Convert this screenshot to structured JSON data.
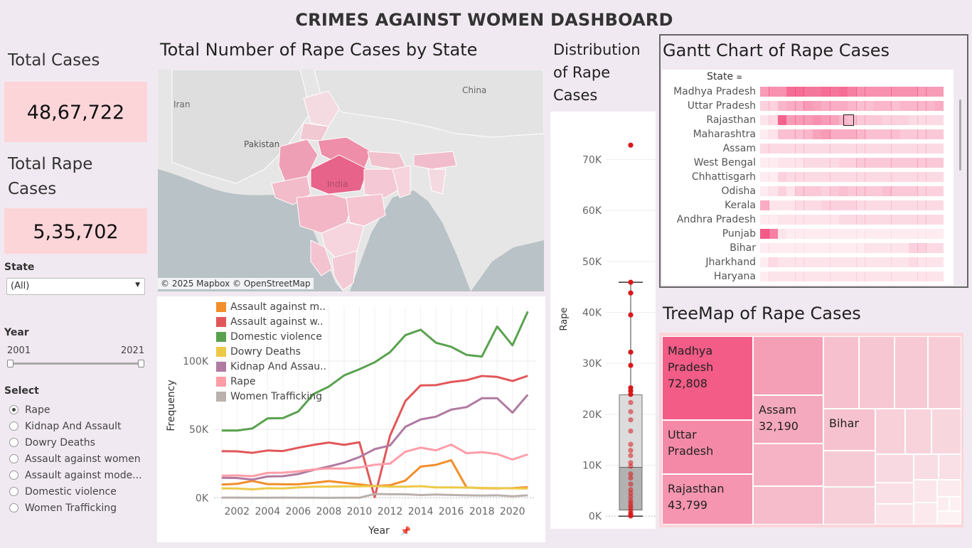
{
  "title": "CRIMES AGAINST WOMEN DASHBOARD",
  "kpis": {
    "total_cases_label": "Total Cases",
    "total_cases_value": "48,67,722",
    "total_rape_label": "Total Rape Cases",
    "total_rape_value": "5,35,702"
  },
  "filters": {
    "state_label": "State",
    "state_value": "(All)",
    "year_label": "Year",
    "year_min": "2001",
    "year_max": "2021",
    "select_label": "Select",
    "options": [
      "Rape",
      "Kidnap And Assault",
      "Dowry Deaths",
      "Assault against women",
      "Assault against mode...",
      "Domestic violence",
      "Women Trafficking"
    ],
    "selected_index": 0
  },
  "map": {
    "title": "Total Number of Rape Cases by State",
    "labels": {
      "iran": "Iran",
      "pakistan": "Pakistan",
      "china": "China",
      "india": "India"
    },
    "attribution": "© 2025 Mapbox © OpenStreetMap"
  },
  "colors": {
    "accent_pink": "#f25c86",
    "light_pink": "#fcd5d9",
    "bg": "#f1e9f1",
    "dot_red": "#d7191c"
  },
  "chart_data": [
    {
      "type": "line",
      "xlabel": "Year",
      "ylabel": "Frequency",
      "ylim": [
        -5000,
        140000
      ],
      "yticks": [
        "0K",
        "50K",
        "100K"
      ],
      "xticks": [
        "2002",
        "2004",
        "2006",
        "2008",
        "2010",
        "2012",
        "2014",
        "2016",
        "2018",
        "2020"
      ],
      "x": [
        2001,
        2002,
        2003,
        2004,
        2005,
        2006,
        2007,
        2008,
        2009,
        2010,
        2011,
        2012,
        2013,
        2014,
        2015,
        2016,
        2017,
        2018,
        2019,
        2020,
        2021
      ],
      "series": [
        {
          "name": "Assault against m..",
          "color": "#f28e2b",
          "values": [
            9700,
            10200,
            12300,
            10000,
            9900,
            9900,
            10900,
            12200,
            11000,
            9800,
            8600,
            9200,
            12600,
            22800,
            24100,
            27500,
            7600,
            7000,
            6900,
            7100,
            7800
          ]
        },
        {
          "name": "Assault against w..",
          "color": "#e15759",
          "values": [
            34100,
            34000,
            32900,
            34600,
            34200,
            36600,
            38700,
            40400,
            38700,
            40600,
            500,
            45400,
            70700,
            82200,
            82400,
            84700,
            86000,
            89100,
            88400,
            85400,
            89200
          ]
        },
        {
          "name": "Domestic violence",
          "color": "#59a14f",
          "values": [
            49200,
            49200,
            50700,
            58100,
            58300,
            63100,
            75900,
            81300,
            89500,
            94000,
            99100,
            106500,
            118900,
            122900,
            113400,
            110400,
            104500,
            103300,
            125300,
            111500,
            136200
          ]
        },
        {
          "name": "Dowry Deaths",
          "color": "#edc948",
          "values": [
            6900,
            6800,
            6200,
            7000,
            6800,
            7600,
            8100,
            8200,
            8400,
            8400,
            8600,
            8200,
            8100,
            8500,
            7600,
            7600,
            7500,
            7200,
            7100,
            6900,
            6800
          ]
        },
        {
          "name": "Kidnap And Assau..",
          "color": "#b07aa1",
          "values": [
            14600,
            14500,
            13300,
            15600,
            15800,
            17400,
            20400,
            22900,
            25700,
            29800,
            35600,
            38300,
            51900,
            57300,
            59300,
            64500,
            66300,
            72800,
            72800,
            62300,
            75400
          ]
        },
        {
          "name": "Rape",
          "color": "#ff9da7",
          "values": [
            16100,
            16400,
            15800,
            18200,
            18400,
            19300,
            20700,
            21500,
            21400,
            22200,
            24200,
            25000,
            33700,
            36700,
            34700,
            38900,
            32600,
            33400,
            32000,
            28000,
            31700
          ]
        },
        {
          "name": "Women Trafficking",
          "color": "#bab0ac",
          "values": [
            100,
            100,
            50,
            50,
            150,
            70,
            60,
            20,
            50,
            40,
            2800,
            2600,
            2600,
            2000,
            2400,
            2100,
            1800,
            1600,
            1800,
            1100,
            1800
          ]
        }
      ]
    },
    {
      "type": "scatter",
      "title": "Distribution of Rape Cases",
      "ylabel": "Rape",
      "ylim": [
        -1500,
        78000
      ],
      "yticks": [
        "0K",
        "10K",
        "20K",
        "30K",
        "40K",
        "50K",
        "60K",
        "70K"
      ],
      "box": {
        "min": 0,
        "q1": 1200,
        "median": 9600,
        "q3": 23800,
        "max": 45900
      },
      "values": [
        72808,
        45900,
        43799,
        39500,
        32190,
        29600,
        25200,
        24600,
        23900,
        22300,
        20500,
        18900,
        16700,
        14100,
        12900,
        11900,
        10500,
        9800,
        8300,
        7500,
        6300,
        5200,
        4500,
        3800,
        3100,
        2600,
        2100,
        1700,
        1300,
        900,
        600,
        400,
        250,
        120,
        60,
        20
      ]
    },
    {
      "type": "heatmap",
      "title": "Gantt Chart of Rape Cases",
      "header": "State",
      "categories": [
        "Madhya Pradesh",
        "Uttar Pradesh",
        "Rajasthan",
        "Maharashtra",
        "Assam",
        "West Bengal",
        "Chhattisgarh",
        "Odisha",
        "Kerala",
        "Andhra Pradesh",
        "Punjab",
        "Bihar",
        "Jharkhand",
        "Haryana"
      ],
      "x": [
        2001,
        2002,
        2003,
        2004,
        2005,
        2006,
        2007,
        2008,
        2009,
        2010,
        2011,
        2012,
        2013,
        2014,
        2015,
        2016,
        2017,
        2018,
        2019,
        2020,
        2021
      ],
      "values": [
        [
          0.55,
          0.6,
          0.6,
          0.8,
          0.8,
          0.75,
          0.75,
          0.8,
          0.75,
          0.8,
          0.7,
          0.6,
          0.6,
          0.6,
          0.6,
          0.6,
          0.6,
          0.6,
          0.55,
          0.55,
          0.55
        ],
        [
          0.25,
          0.25,
          0.4,
          0.45,
          0.45,
          0.55,
          0.5,
          0.45,
          0.45,
          0.45,
          0.4,
          0.35,
          0.35,
          0.4,
          0.4,
          0.35,
          0.4,
          0.4,
          0.4,
          0.4,
          0.45
        ],
        [
          0.15,
          0.2,
          0.85,
          0.55,
          0.55,
          0.55,
          0.6,
          0.55,
          0.5,
          0.4,
          0.35,
          0.3,
          0.3,
          0.3,
          0.25,
          0.25,
          0.25,
          0.2,
          0.2,
          0.2,
          0.2
        ],
        [
          0.1,
          0.15,
          0.35,
          0.35,
          0.35,
          0.4,
          0.5,
          0.55,
          0.45,
          0.45,
          0.45,
          0.4,
          0.35,
          0.35,
          0.35,
          0.35,
          0.3,
          0.3,
          0.3,
          0.3,
          0.3
        ],
        [
          0.2,
          0.2,
          0.2,
          0.2,
          0.2,
          0.2,
          0.2,
          0.2,
          0.2,
          0.2,
          0.2,
          0.2,
          0.2,
          0.2,
          0.2,
          0.2,
          0.2,
          0.2,
          0.2,
          0.2,
          0.2
        ],
        [
          0.1,
          0.1,
          0.15,
          0.15,
          0.15,
          0.2,
          0.2,
          0.2,
          0.2,
          0.25,
          0.25,
          0.3,
          0.3,
          0.3,
          0.3,
          0.3,
          0.3,
          0.3,
          0.3,
          0.3,
          0.3
        ],
        [
          0.1,
          0.1,
          0.25,
          0.2,
          0.2,
          0.2,
          0.2,
          0.2,
          0.2,
          0.2,
          0.2,
          0.2,
          0.2,
          0.2,
          0.2,
          0.2,
          0.2,
          0.2,
          0.2,
          0.2,
          0.2
        ],
        [
          0.1,
          0.15,
          0.25,
          0.15,
          0.3,
          0.3,
          0.3,
          0.25,
          0.3,
          0.35,
          0.3,
          0.3,
          0.3,
          0.3,
          0.35,
          0.3,
          0.3,
          0.3,
          0.25,
          0.25,
          0.25
        ],
        [
          0.45,
          0.15,
          0.15,
          0.15,
          0.2,
          0.2,
          0.2,
          0.25,
          0.25,
          0.25,
          0.25,
          0.2,
          0.2,
          0.2,
          0.2,
          0.2,
          0.2,
          0.2,
          0.2,
          0.2,
          0.2
        ],
        [
          0.1,
          0.1,
          0.15,
          0.15,
          0.15,
          0.15,
          0.15,
          0.15,
          0.15,
          0.2,
          0.2,
          0.2,
          0.2,
          0.2,
          0.2,
          0.2,
          0.2,
          0.2,
          0.2,
          0.2,
          0.2
        ],
        [
          0.9,
          0.7,
          0.15,
          0.1,
          0.1,
          0.1,
          0.1,
          0.1,
          0.1,
          0.1,
          0.1,
          0.1,
          0.1,
          0.1,
          0.1,
          0.1,
          0.1,
          0.1,
          0.1,
          0.1,
          0.1
        ],
        [
          0.1,
          0.1,
          0.1,
          0.1,
          0.1,
          0.1,
          0.1,
          0.1,
          0.1,
          0.1,
          0.1,
          0.1,
          0.15,
          0.15,
          0.15,
          0.15,
          0.15,
          0.25,
          0.25,
          0.2,
          0.2
        ],
        [
          0.1,
          0.2,
          0.15,
          0.15,
          0.15,
          0.15,
          0.15,
          0.15,
          0.15,
          0.15,
          0.15,
          0.15,
          0.15,
          0.15,
          0.15,
          0.15,
          0.15,
          0.2,
          0.15,
          0.15,
          0.15
        ],
        [
          0.1,
          0.15,
          0.15,
          0.15,
          0.15,
          0.15,
          0.15,
          0.15,
          0.15,
          0.15,
          0.15,
          0.15,
          0.15,
          0.15,
          0.15,
          0.15,
          0.15,
          0.15,
          0.15,
          0.15,
          0.15
        ]
      ]
    },
    {
      "type": "treemap",
      "title": "TreeMap of Rape Cases",
      "items": [
        {
          "label": "Madhya Pradesh",
          "value": "72,808"
        },
        {
          "label": "Uttar Pradesh",
          "value": ""
        },
        {
          "label": "Rajasthan",
          "value": "43,799"
        },
        {
          "label": "Assam",
          "value": "32,190"
        },
        {
          "label": "Bihar",
          "value": ""
        }
      ]
    }
  ]
}
